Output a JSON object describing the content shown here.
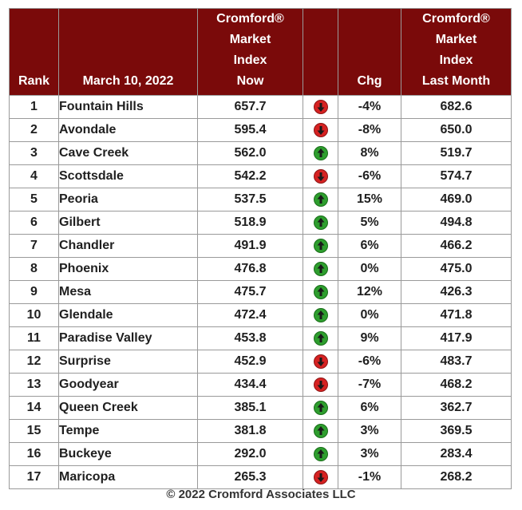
{
  "header": {
    "rank": "Rank",
    "date": "March 10, 2022",
    "index_now": [
      "Cromford®",
      "Market",
      "Index",
      "Now"
    ],
    "arrow": "",
    "chg": "Chg",
    "index_last": [
      "Cromford®",
      "Market",
      "Index",
      "Last Month"
    ]
  },
  "colors": {
    "header_bg": "#7a0a0a",
    "up": "#2e9e2e",
    "down": "#d62222"
  },
  "rows": [
    {
      "rank": "1",
      "city": "Fountain Hills",
      "now": "657.7",
      "dir": "down",
      "icon": "down-arrow-icon",
      "chg": "-4%",
      "last": "682.6"
    },
    {
      "rank": "2",
      "city": "Avondale",
      "now": "595.4",
      "dir": "down",
      "icon": "down-arrow-icon",
      "chg": "-8%",
      "last": "650.0"
    },
    {
      "rank": "3",
      "city": "Cave Creek",
      "now": "562.0",
      "dir": "up",
      "icon": "up-arrow-icon",
      "chg": "8%",
      "last": "519.7"
    },
    {
      "rank": "4",
      "city": "Scottsdale",
      "now": "542.2",
      "dir": "down",
      "icon": "down-arrow-icon",
      "chg": "-6%",
      "last": "574.7"
    },
    {
      "rank": "5",
      "city": "Peoria",
      "now": "537.5",
      "dir": "up",
      "icon": "up-arrow-icon",
      "chg": "15%",
      "last": "469.0"
    },
    {
      "rank": "6",
      "city": "Gilbert",
      "now": "518.9",
      "dir": "up",
      "icon": "up-arrow-icon",
      "chg": "5%",
      "last": "494.8"
    },
    {
      "rank": "7",
      "city": "Chandler",
      "now": "491.9",
      "dir": "up",
      "icon": "up-arrow-icon",
      "chg": "6%",
      "last": "466.2"
    },
    {
      "rank": "8",
      "city": "Phoenix",
      "now": "476.8",
      "dir": "up",
      "icon": "up-arrow-icon",
      "chg": "0%",
      "last": "475.0"
    },
    {
      "rank": "9",
      "city": "Mesa",
      "now": "475.7",
      "dir": "up",
      "icon": "up-arrow-icon",
      "chg": "12%",
      "last": "426.3"
    },
    {
      "rank": "10",
      "city": "Glendale",
      "now": "472.4",
      "dir": "up",
      "icon": "up-arrow-icon",
      "chg": "0%",
      "last": "471.8"
    },
    {
      "rank": "11",
      "city": "Paradise Valley",
      "now": "453.8",
      "dir": "up",
      "icon": "up-arrow-icon",
      "chg": "9%",
      "last": "417.9"
    },
    {
      "rank": "12",
      "city": "Surprise",
      "now": "452.9",
      "dir": "down",
      "icon": "down-arrow-icon",
      "chg": "-6%",
      "last": "483.7"
    },
    {
      "rank": "13",
      "city": "Goodyear",
      "now": "434.4",
      "dir": "down",
      "icon": "down-arrow-icon",
      "chg": "-7%",
      "last": "468.2"
    },
    {
      "rank": "14",
      "city": "Queen Creek",
      "now": "385.1",
      "dir": "up",
      "icon": "up-arrow-icon",
      "chg": "6%",
      "last": "362.7"
    },
    {
      "rank": "15",
      "city": "Tempe",
      "now": "381.8",
      "dir": "up",
      "icon": "up-arrow-icon",
      "chg": "3%",
      "last": "369.5"
    },
    {
      "rank": "16",
      "city": "Buckeye",
      "now": "292.0",
      "dir": "up",
      "icon": "up-arrow-icon",
      "chg": "3%",
      "last": "283.4"
    },
    {
      "rank": "17",
      "city": "Maricopa",
      "now": "265.3",
      "dir": "down",
      "icon": "down-arrow-icon",
      "chg": "-1%",
      "last": "268.2"
    }
  ],
  "footer": "© 2022 Cromford Associates LLC"
}
